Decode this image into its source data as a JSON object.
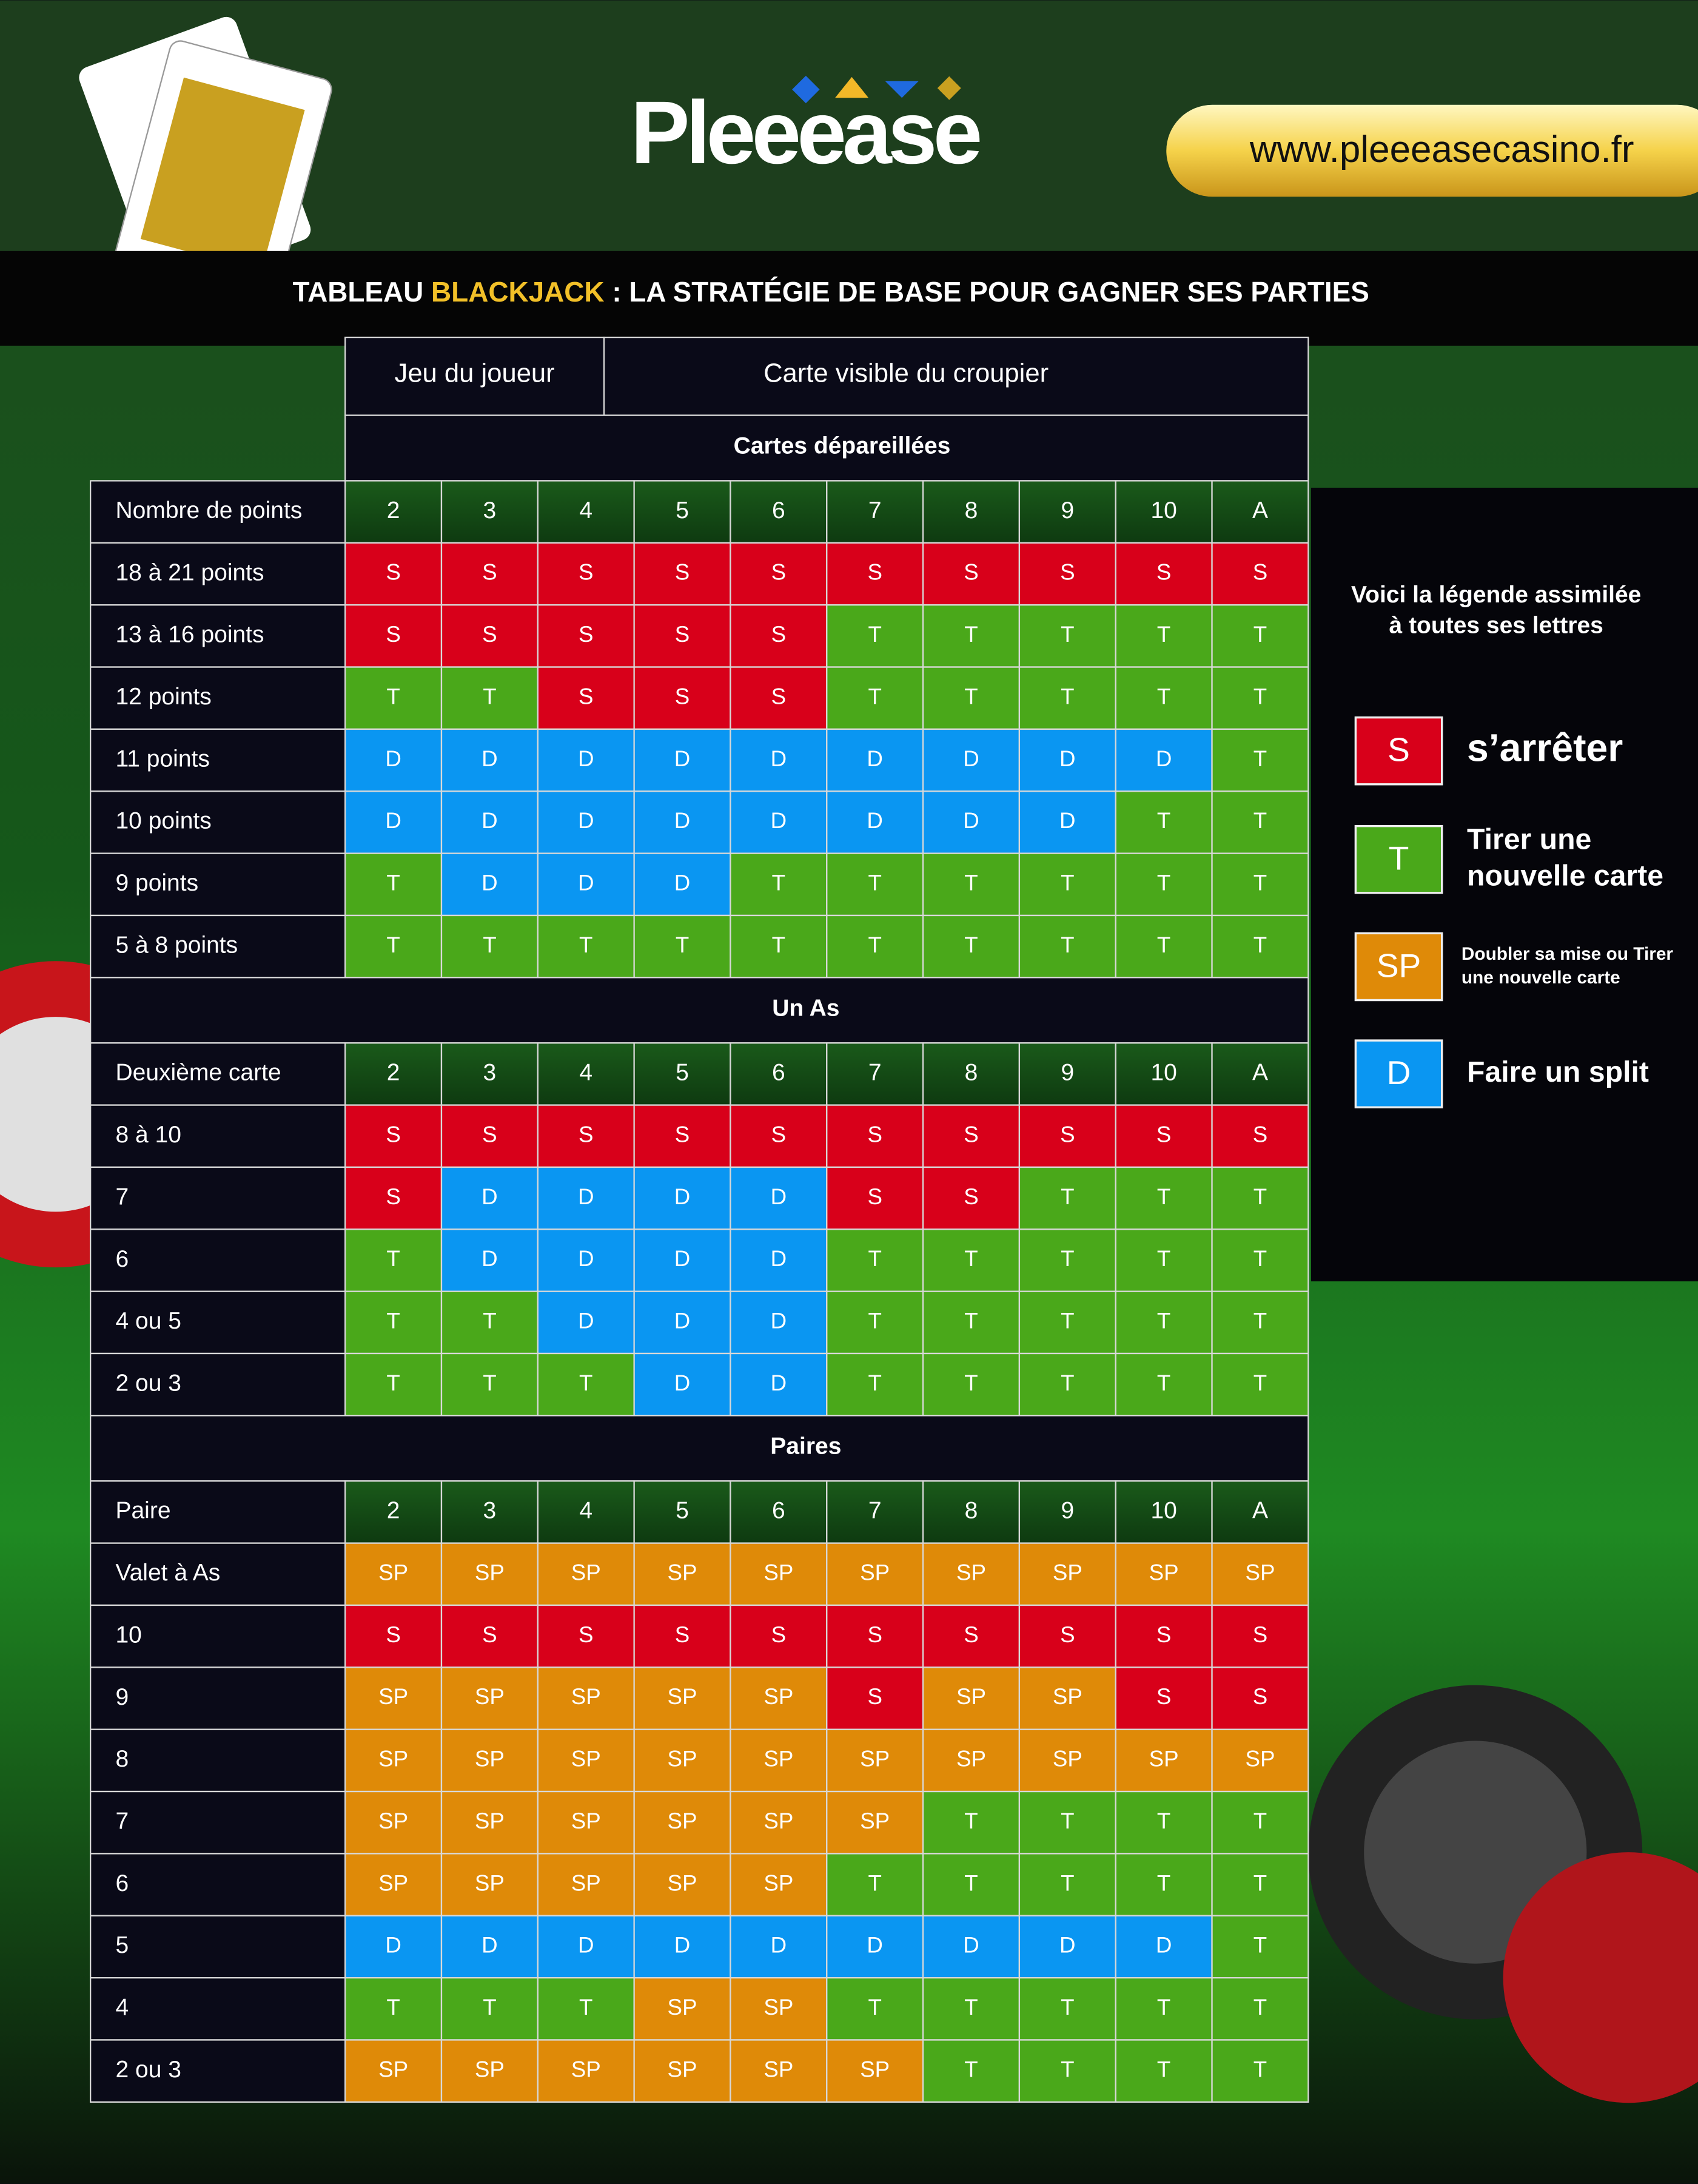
{
  "header": {
    "logo": "Pleeease",
    "url": "www.pleeeasecasino.fr",
    "title": [
      "TABLEAU ",
      "BLACKJACK",
      " : LA STRATÉGIE DE BASE POUR GAGNER SES PARTIES"
    ]
  },
  "colors": {
    "S": "#d8001a",
    "T": "#4aa81a",
    "D": "#0a96f2",
    "SP": "#df8a08"
  },
  "table": {
    "player_header": "Jeu du joueur",
    "dealer_header": "Carte visible du croupier",
    "sections": [
      {
        "title": "Cartes dépareillées",
        "row_header": "Nombre de points",
        "dealer_cards": [
          "2",
          "3",
          "4",
          "5",
          "6",
          "7",
          "8",
          "9",
          "10",
          "A"
        ],
        "rows": [
          {
            "label": "18 à 21 points",
            "cells": [
              "S",
              "S",
              "S",
              "S",
              "S",
              "S",
              "S",
              "S",
              "S",
              "S"
            ]
          },
          {
            "label": "13 à 16 points",
            "cells": [
              "S",
              "S",
              "S",
              "S",
              "S",
              "T",
              "T",
              "T",
              "T",
              "T"
            ]
          },
          {
            "label": "12 points",
            "cells": [
              "T",
              "T",
              "S",
              "S",
              "S",
              "T",
              "T",
              "T",
              "T",
              "T"
            ]
          },
          {
            "label": "11 points",
            "cells": [
              "D",
              "D",
              "D",
              "D",
              "D",
              "D",
              "D",
              "D",
              "D",
              "T"
            ]
          },
          {
            "label": "10 points",
            "cells": [
              "D",
              "D",
              "D",
              "D",
              "D",
              "D",
              "D",
              "D",
              "T",
              "T"
            ]
          },
          {
            "label": "9 points",
            "cells": [
              "T",
              "D",
              "D",
              "D",
              "T",
              "T",
              "T",
              "T",
              "T",
              "T"
            ]
          },
          {
            "label": "5 à 8 points",
            "cells": [
              "T",
              "T",
              "T",
              "T",
              "T",
              "T",
              "T",
              "T",
              "T",
              "T"
            ]
          }
        ]
      },
      {
        "title": "Un As",
        "row_header": "Deuxième carte",
        "dealer_cards": [
          "2",
          "3",
          "4",
          "5",
          "6",
          "7",
          "8",
          "9",
          "10",
          "A"
        ],
        "rows": [
          {
            "label": "8 à 10",
            "cells": [
              "S",
              "S",
              "S",
              "S",
              "S",
              "S",
              "S",
              "S",
              "S",
              "S"
            ]
          },
          {
            "label": "7",
            "cells": [
              "S",
              "D",
              "D",
              "D",
              "D",
              "S",
              "S",
              "T",
              "T",
              "T"
            ]
          },
          {
            "label": "6",
            "cells": [
              "T",
              "D",
              "D",
              "D",
              "D",
              "T",
              "T",
              "T",
              "T",
              "T"
            ]
          },
          {
            "label": "4 ou 5",
            "cells": [
              "T",
              "T",
              "D",
              "D",
              "D",
              "T",
              "T",
              "T",
              "T",
              "T"
            ]
          },
          {
            "label": "2 ou 3",
            "cells": [
              "T",
              "T",
              "T",
              "D",
              "D",
              "T",
              "T",
              "T",
              "T",
              "T"
            ]
          }
        ]
      },
      {
        "title": "Paires",
        "row_header": "Paire",
        "dealer_cards": [
          "2",
          "3",
          "4",
          "5",
          "6",
          "7",
          "8",
          "9",
          "10",
          "A"
        ],
        "rows": [
          {
            "label": "Valet à As",
            "cells": [
              "SP",
              "SP",
              "SP",
              "SP",
              "SP",
              "SP",
              "SP",
              "SP",
              "SP",
              "SP"
            ]
          },
          {
            "label": "10",
            "cells": [
              "S",
              "S",
              "S",
              "S",
              "S",
              "S",
              "S",
              "S",
              "S",
              "S"
            ]
          },
          {
            "label": "9",
            "cells": [
              "SP",
              "SP",
              "SP",
              "SP",
              "SP",
              "S",
              "SP",
              "SP",
              "S",
              "S"
            ]
          },
          {
            "label": "8",
            "cells": [
              "SP",
              "SP",
              "SP",
              "SP",
              "SP",
              "SP",
              "SP",
              "SP",
              "SP",
              "SP"
            ]
          },
          {
            "label": "7",
            "cells": [
              "SP",
              "SP",
              "SP",
              "SP",
              "SP",
              "SP",
              "T",
              "T",
              "T",
              "T"
            ]
          },
          {
            "label": "6",
            "cells": [
              "SP",
              "SP",
              "SP",
              "SP",
              "SP",
              "T",
              "T",
              "T",
              "T",
              "T"
            ]
          },
          {
            "label": "5",
            "cells": [
              "D",
              "D",
              "D",
              "D",
              "D",
              "D",
              "D",
              "D",
              "D",
              "T"
            ]
          },
          {
            "label": "4",
            "cells": [
              "T",
              "T",
              "T",
              "SP",
              "SP",
              "T",
              "T",
              "T",
              "T",
              "T"
            ]
          },
          {
            "label": "2 ou 3",
            "cells": [
              "SP",
              "SP",
              "SP",
              "SP",
              "SP",
              "SP",
              "T",
              "T",
              "T",
              "T"
            ]
          }
        ]
      }
    ]
  },
  "legend": {
    "intro": [
      "Voici la légende assimilée",
      "à toutes ses lettres"
    ],
    "items": [
      {
        "code": "S",
        "label": [
          "s’arrêter"
        ]
      },
      {
        "code": "T",
        "label": [
          "Tirer une",
          "nouvelle carte"
        ]
      },
      {
        "code": "SP",
        "label": [
          "Doubler sa mise ou Tirer",
          "une nouvelle carte"
        ]
      },
      {
        "code": "D",
        "label": [
          "Faire un split"
        ]
      }
    ]
  }
}
